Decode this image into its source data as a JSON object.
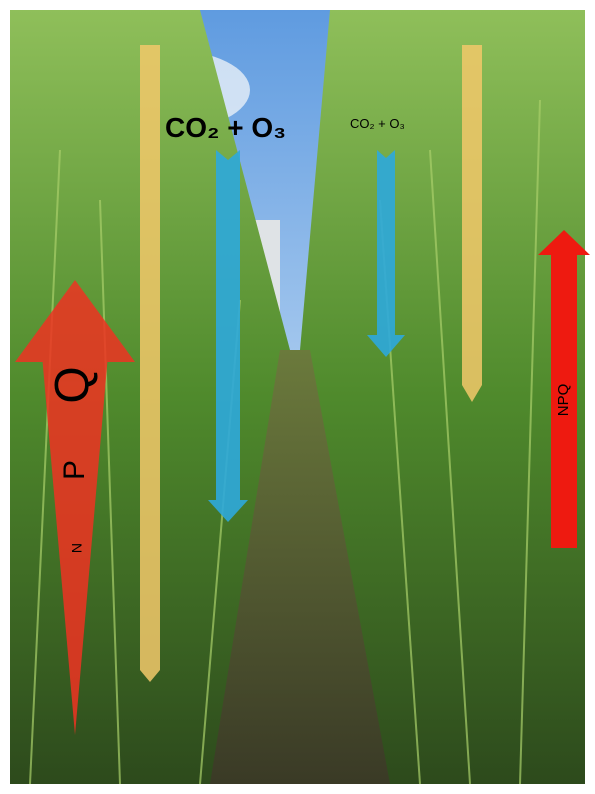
{
  "labels": {
    "large": "CO₂ + O₃",
    "small": "CO₂ + O₃",
    "left_arrow": [
      "N",
      "P",
      "Q"
    ],
    "right_arrow": "NPQ"
  }
}
